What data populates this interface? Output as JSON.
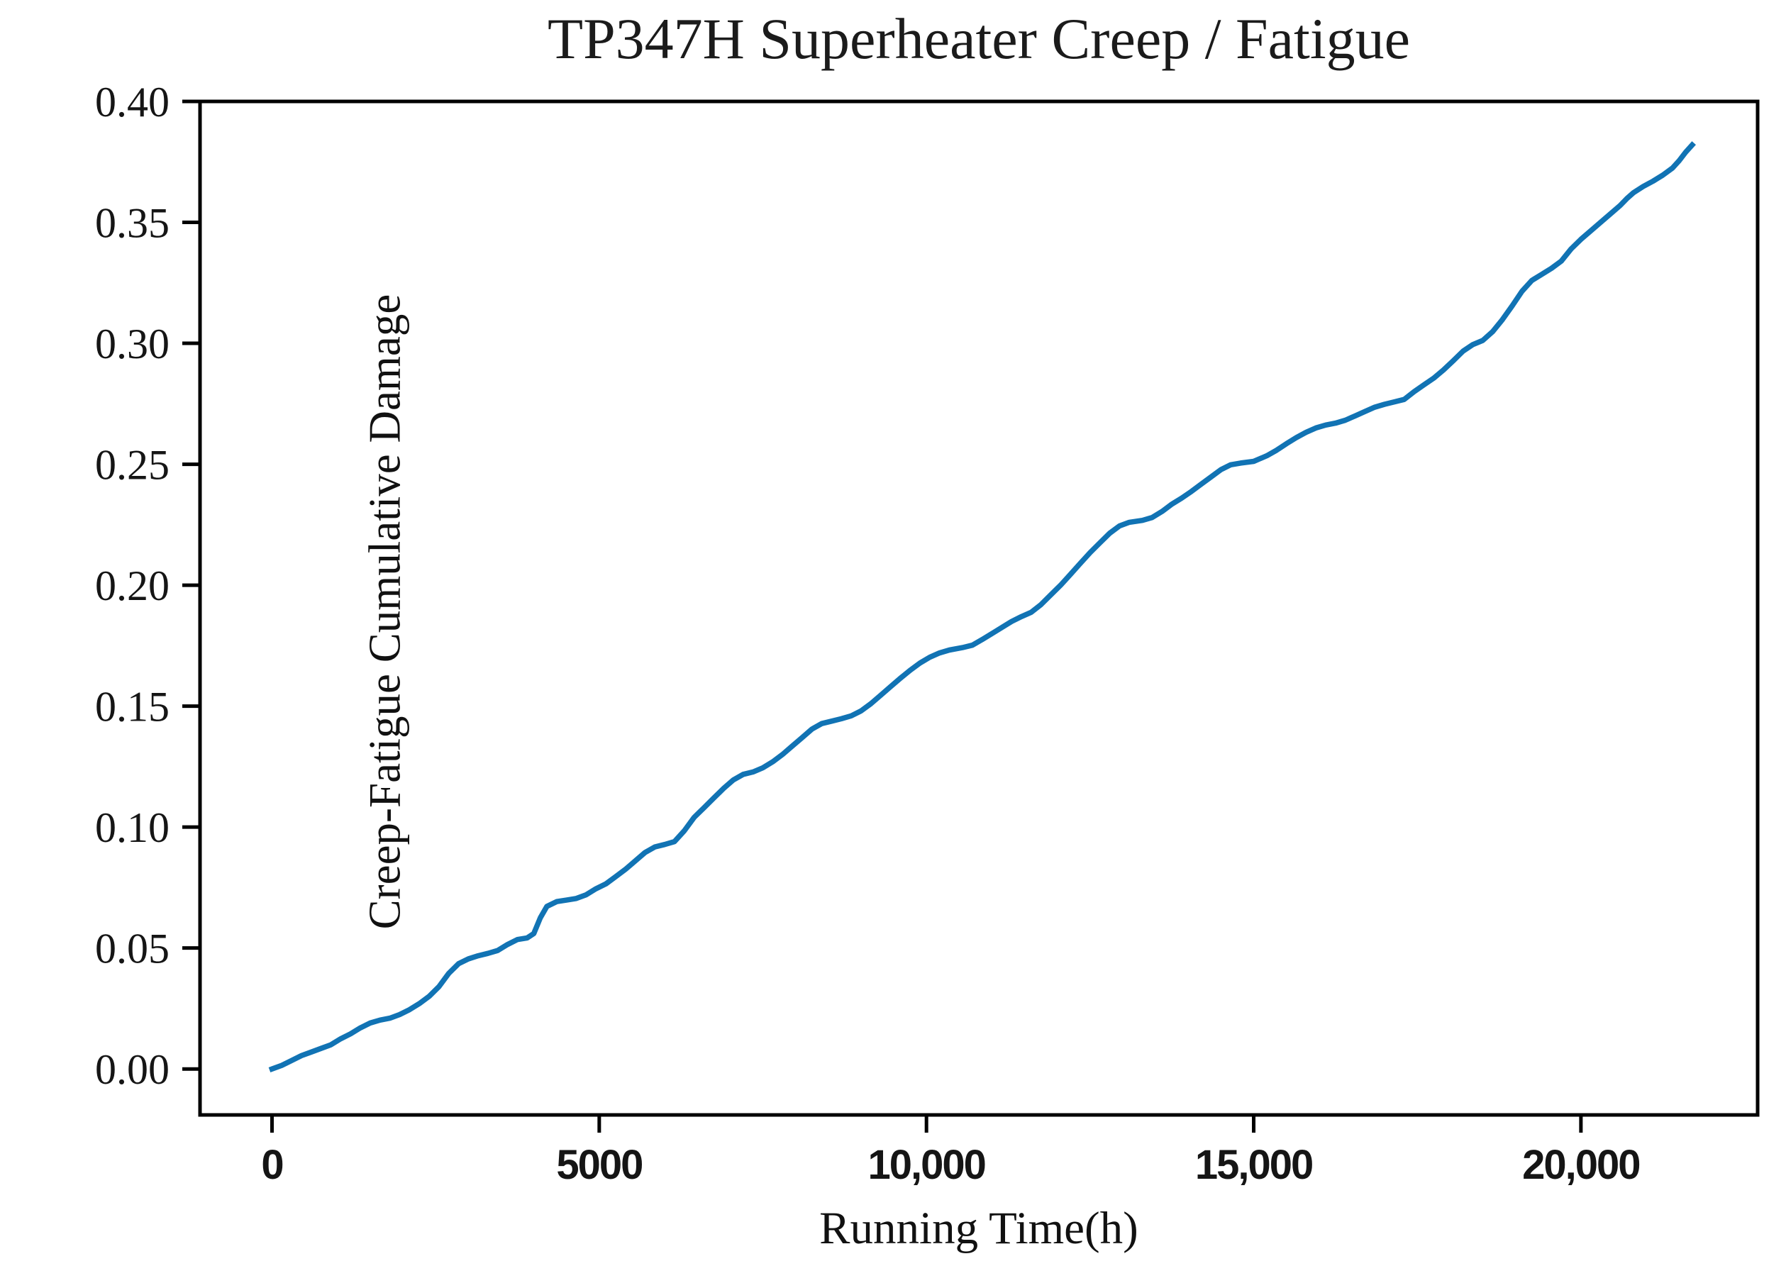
{
  "chart_data": {
    "type": "line",
    "title": "TP347H Superheater Creep / Fatigue",
    "xlabel": "Running Time(h)",
    "ylabel": "Creep-Fatigue Cumulative Damage",
    "xlim": [
      -1100,
      22700
    ],
    "ylim": [
      -0.019,
      0.4
    ],
    "grid": false,
    "legend_position": "none",
    "x_ticks": [
      0,
      5000,
      10000,
      15000,
      20000
    ],
    "x_tick_labels": [
      "0",
      "5000",
      "10,000",
      "15,000",
      "20,000"
    ],
    "y_ticks": [
      0.0,
      0.05,
      0.1,
      0.15,
      0.2,
      0.25,
      0.3,
      0.35,
      0.4
    ],
    "y_tick_labels": [
      "0.00",
      "0.05",
      "0.10",
      "0.15",
      "0.20",
      "0.25",
      "0.30",
      "0.35",
      "0.40"
    ],
    "colors": {
      "line": "#1173b4",
      "axis": "#000000",
      "background": "#ffffff",
      "text": "#1b1b1b"
    },
    "series": [
      {
        "name": "creep-fatigue-cumulative-damage",
        "color": "#1173b4",
        "x": [
          0,
          150,
          300,
          450,
          600,
          750,
          900,
          1050,
          1200,
          1350,
          1500,
          1650,
          1800,
          1950,
          2100,
          2250,
          2400,
          2550,
          2700,
          2850,
          3000,
          3150,
          3300,
          3450,
          3600,
          3750,
          3900,
          4000,
          4100,
          4200,
          4350,
          4500,
          4650,
          4800,
          4950,
          5100,
          5250,
          5400,
          5550,
          5700,
          5850,
          6000,
          6150,
          6300,
          6450,
          6600,
          6750,
          6900,
          7050,
          7200,
          7350,
          7500,
          7650,
          7800,
          7950,
          8100,
          8250,
          8400,
          8550,
          8700,
          8850,
          9000,
          9150,
          9300,
          9450,
          9600,
          9750,
          9900,
          10050,
          10200,
          10350,
          10550,
          10700,
          10850,
          11000,
          11150,
          11300,
          11450,
          11600,
          11750,
          11900,
          12050,
          12200,
          12350,
          12500,
          12650,
          12800,
          12950,
          13100,
          13300,
          13450,
          13600,
          13750,
          13900,
          14050,
          14200,
          14350,
          14500,
          14650,
          14800,
          15000,
          15200,
          15350,
          15500,
          15650,
          15800,
          15950,
          16100,
          16250,
          16400,
          16550,
          16700,
          16850,
          17000,
          17150,
          17300,
          17450,
          17600,
          17750,
          17900,
          18050,
          18200,
          18350,
          18500,
          18650,
          18800,
          18950,
          19100,
          19250,
          19400,
          19550,
          19700,
          19850,
          20000,
          20150,
          20300,
          20450,
          20600,
          20700,
          20800,
          20950,
          21100,
          21250,
          21400,
          21500,
          21600,
          21700
        ],
        "y": [
          0,
          0.0015,
          0.0035,
          0.0055,
          0.007,
          0.0085,
          0.01,
          0.0125,
          0.0145,
          0.017,
          0.019,
          0.0202,
          0.021,
          0.0225,
          0.0245,
          0.027,
          0.03,
          0.034,
          0.0395,
          0.0435,
          0.0455,
          0.0468,
          0.0478,
          0.049,
          0.0515,
          0.0535,
          0.0542,
          0.056,
          0.0625,
          0.0672,
          0.0692,
          0.0698,
          0.0705,
          0.072,
          0.0745,
          0.0765,
          0.0795,
          0.0825,
          0.086,
          0.0895,
          0.0918,
          0.0928,
          0.094,
          0.0985,
          0.104,
          0.108,
          0.112,
          0.116,
          0.1195,
          0.1218,
          0.1228,
          0.1245,
          0.127,
          0.13,
          0.1335,
          0.137,
          0.1405,
          0.1428,
          0.1438,
          0.1448,
          0.146,
          0.148,
          0.151,
          0.1545,
          0.158,
          0.1615,
          0.1648,
          0.1678,
          0.1702,
          0.172,
          0.1732,
          0.1742,
          0.1752,
          0.1775,
          0.18,
          0.1825,
          0.185,
          0.187,
          0.1888,
          0.192,
          0.196,
          0.2,
          0.2045,
          0.209,
          0.2135,
          0.2175,
          0.2215,
          0.2245,
          0.226,
          0.2268,
          0.228,
          0.2305,
          0.2335,
          0.236,
          0.2388,
          0.2418,
          0.2448,
          0.2478,
          0.2498,
          0.2505,
          0.2512,
          0.2535,
          0.2558,
          0.2585,
          0.261,
          0.2632,
          0.265,
          0.2662,
          0.267,
          0.2682,
          0.27,
          0.2718,
          0.2736,
          0.2748,
          0.2758,
          0.2768,
          0.28,
          0.2828,
          0.2856,
          0.289,
          0.2928,
          0.2968,
          0.2995,
          0.3012,
          0.3048,
          0.3098,
          0.3155,
          0.3215,
          0.326,
          0.3285,
          0.331,
          0.334,
          0.339,
          0.343,
          0.3465,
          0.35,
          0.3535,
          0.357,
          0.3598,
          0.3622,
          0.3648,
          0.367,
          0.3695,
          0.3725,
          0.3755,
          0.379,
          0.382
        ]
      }
    ]
  }
}
